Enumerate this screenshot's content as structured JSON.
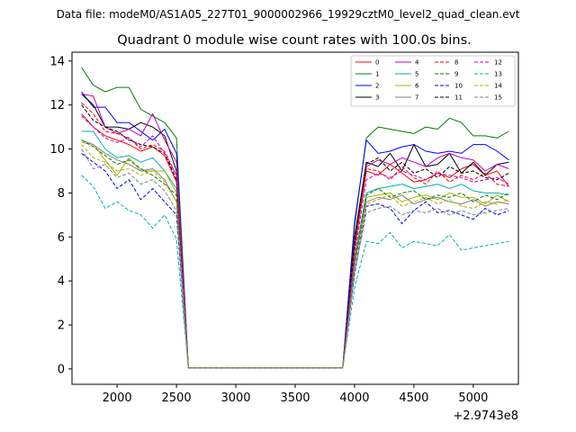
{
  "chart_data": {
    "type": "line",
    "suptitle": "Data file: modeM0/AS1A05_227T01_9000002966_19929cztM0_level2_quad_clean.evt",
    "title": "Quadrant 0 module wise count rates with 100.0s bins.",
    "xlabel": "",
    "ylabel": "",
    "x_offset_label": "+2.9743e8",
    "xlim": [
      1620,
      5380
    ],
    "ylim": [
      -0.7,
      14.4
    ],
    "xticks": [
      2000,
      2500,
      3000,
      3500,
      4000,
      4500,
      5000
    ],
    "yticks": [
      0,
      2,
      4,
      6,
      8,
      10,
      12,
      14
    ],
    "legend_position": "top-right",
    "legend_columns": 4,
    "x": [
      1700,
      1800,
      1900,
      2000,
      2100,
      2200,
      2300,
      2400,
      2500,
      2600,
      2700,
      2800,
      2900,
      3000,
      3100,
      3200,
      3300,
      3400,
      3500,
      3600,
      3700,
      3800,
      3900,
      4000,
      4100,
      4200,
      4300,
      4400,
      4500,
      4600,
      4700,
      4800,
      4900,
      5000,
      5100,
      5200,
      5300
    ],
    "series": [
      {
        "name": "0",
        "color": "#ff0000",
        "style": "solid",
        "values": [
          11.6,
          11.0,
          10.6,
          10.4,
          10.2,
          9.9,
          10.1,
          9.7,
          8.5,
          0.05,
          0.05,
          0.05,
          0.05,
          0.05,
          0.05,
          0.05,
          0.05,
          0.05,
          0.05,
          0.05,
          0.05,
          0.05,
          0.05,
          5.5,
          9.0,
          8.8,
          9.3,
          8.9,
          8.5,
          8.6,
          8.9,
          8.7,
          9.1,
          9.3,
          8.8,
          9.0,
          8.3
        ]
      },
      {
        "name": "1",
        "color": "#008000",
        "style": "solid",
        "values": [
          13.7,
          12.9,
          12.6,
          12.8,
          12.8,
          11.8,
          11.5,
          11.2,
          10.5,
          0.05,
          0.05,
          0.05,
          0.05,
          0.05,
          0.05,
          0.05,
          0.05,
          0.05,
          0.05,
          0.05,
          0.05,
          0.05,
          0.05,
          6.5,
          10.5,
          11.0,
          10.9,
          10.8,
          10.7,
          11.0,
          10.9,
          11.4,
          11.2,
          10.6,
          10.6,
          10.5,
          10.8
        ]
      },
      {
        "name": "2",
        "color": "#0000ff",
        "style": "solid",
        "values": [
          12.6,
          11.9,
          11.9,
          11.2,
          11.2,
          10.8,
          10.4,
          10.9,
          9.8,
          0.05,
          0.05,
          0.05,
          0.05,
          0.05,
          0.05,
          0.05,
          0.05,
          0.05,
          0.05,
          0.05,
          0.05,
          0.05,
          0.05,
          6.7,
          10.4,
          9.8,
          9.9,
          10.1,
          10.2,
          9.9,
          9.8,
          9.9,
          9.8,
          10.2,
          10.2,
          9.9,
          9.5
        ]
      },
      {
        "name": "3",
        "color": "#000000",
        "style": "solid",
        "values": [
          12.5,
          12.0,
          11.0,
          11.0,
          10.9,
          11.2,
          11.0,
          10.6,
          9.0,
          0.05,
          0.05,
          0.05,
          0.05,
          0.05,
          0.05,
          0.05,
          0.05,
          0.05,
          0.05,
          0.05,
          0.05,
          0.05,
          0.05,
          6.0,
          9.4,
          9.2,
          9.8,
          9.0,
          10.2,
          9.2,
          9.3,
          9.8,
          8.9,
          9.4,
          8.8,
          9.3,
          9.4
        ]
      },
      {
        "name": "4",
        "color": "#c000c0",
        "style": "solid",
        "values": [
          12.5,
          12.4,
          11.0,
          10.7,
          10.9,
          10.6,
          11.6,
          10.4,
          9.4,
          0.05,
          0.05,
          0.05,
          0.05,
          0.05,
          0.05,
          0.05,
          0.05,
          0.05,
          0.05,
          0.05,
          0.05,
          0.05,
          0.05,
          5.8,
          9.2,
          9.5,
          9.3,
          9.6,
          9.4,
          9.2,
          9.6,
          9.8,
          9.6,
          9.5,
          9.0,
          9.3,
          9.1
        ]
      },
      {
        "name": "5",
        "color": "#00b0b0",
        "style": "solid",
        "values": [
          10.8,
          10.8,
          10.0,
          9.6,
          9.7,
          9.4,
          9.6,
          9.0,
          8.2,
          0.05,
          0.05,
          0.05,
          0.05,
          0.05,
          0.05,
          0.05,
          0.05,
          0.05,
          0.05,
          0.05,
          0.05,
          0.05,
          0.05,
          5.0,
          8.0,
          8.2,
          8.3,
          8.4,
          8.2,
          8.3,
          8.4,
          8.2,
          8.4,
          8.1,
          8.0,
          8.0,
          7.9
        ]
      },
      {
        "name": "6",
        "color": "#b0b000",
        "style": "solid",
        "values": [
          10.3,
          10.2,
          9.5,
          8.8,
          9.6,
          9.0,
          9.0,
          9.0,
          8.0,
          0.05,
          0.05,
          0.05,
          0.05,
          0.05,
          0.05,
          0.05,
          0.05,
          0.05,
          0.05,
          0.05,
          0.05,
          0.05,
          0.05,
          4.9,
          7.8,
          7.9,
          8.0,
          7.6,
          7.8,
          7.9,
          7.7,
          8.0,
          7.8,
          7.8,
          7.5,
          7.9,
          7.6
        ]
      },
      {
        "name": "7",
        "color": "#808080",
        "style": "solid",
        "values": [
          10.4,
          10.2,
          9.8,
          9.5,
          9.3,
          9.0,
          9.1,
          8.6,
          7.6,
          0.05,
          0.05,
          0.05,
          0.05,
          0.05,
          0.05,
          0.05,
          0.05,
          0.05,
          0.05,
          0.05,
          0.05,
          0.05,
          0.05,
          4.8,
          7.6,
          7.8,
          7.7,
          7.9,
          7.5,
          7.7,
          7.8,
          7.6,
          7.5,
          7.7,
          7.4,
          7.6,
          7.5
        ]
      },
      {
        "name": "8",
        "color": "#ff0000",
        "style": "dashed",
        "values": [
          12.1,
          11.6,
          10.8,
          10.7,
          10.5,
          10.0,
          10.2,
          9.9,
          8.8,
          0.05,
          0.05,
          0.05,
          0.05,
          0.05,
          0.05,
          0.05,
          0.05,
          0.05,
          0.05,
          0.05,
          0.05,
          0.05,
          0.05,
          5.4,
          9.1,
          9.0,
          8.6,
          9.2,
          8.7,
          8.4,
          9.0,
          8.5,
          8.8,
          8.6,
          8.9,
          8.4,
          8.3
        ]
      },
      {
        "name": "9",
        "color": "#008000",
        "style": "dashed",
        "values": [
          10.4,
          10.1,
          9.7,
          9.3,
          9.5,
          9.1,
          8.8,
          8.4,
          7.9,
          0.05,
          0.05,
          0.05,
          0.05,
          0.05,
          0.05,
          0.05,
          0.05,
          0.05,
          0.05,
          0.05,
          0.05,
          0.05,
          0.05,
          4.8,
          7.9,
          8.2,
          7.8,
          8.0,
          8.1,
          7.7,
          7.9,
          7.8,
          8.0,
          7.6,
          7.9,
          7.7,
          8.0
        ]
      },
      {
        "name": "10",
        "color": "#0000ff",
        "style": "dashed",
        "values": [
          9.8,
          9.4,
          9.0,
          8.2,
          8.6,
          7.7,
          8.2,
          7.6,
          7.0,
          0.05,
          0.05,
          0.05,
          0.05,
          0.05,
          0.05,
          0.05,
          0.05,
          0.05,
          0.05,
          0.05,
          0.05,
          0.05,
          0.05,
          4.3,
          7.4,
          7.5,
          7.3,
          6.6,
          7.2,
          7.6,
          7.1,
          7.2,
          7.0,
          6.8,
          7.3,
          7.0,
          7.2
        ]
      },
      {
        "name": "11",
        "color": "#000000",
        "style": "dashed",
        "values": [
          12.0,
          11.3,
          11.0,
          10.8,
          10.4,
          10.2,
          10.1,
          9.8,
          8.6,
          0.05,
          0.05,
          0.05,
          0.05,
          0.05,
          0.05,
          0.05,
          0.05,
          0.05,
          0.05,
          0.05,
          0.05,
          0.05,
          0.05,
          5.8,
          9.3,
          9.6,
          9.0,
          9.4,
          8.9,
          9.1,
          8.7,
          9.2,
          8.9,
          9.0,
          8.7,
          8.6,
          8.9
        ]
      },
      {
        "name": "12",
        "color": "#c000c0",
        "style": "dashed",
        "values": [
          11.5,
          11.0,
          10.5,
          10.3,
          10.5,
          10.1,
          10.6,
          9.8,
          8.8,
          0.05,
          0.05,
          0.05,
          0.05,
          0.05,
          0.05,
          0.05,
          0.05,
          0.05,
          0.05,
          0.05,
          0.05,
          0.05,
          0.05,
          5.2,
          8.6,
          8.9,
          8.7,
          9.0,
          8.8,
          8.6,
          8.9,
          8.8,
          8.7,
          8.5,
          8.6,
          8.7,
          8.4
        ]
      },
      {
        "name": "13",
        "color": "#00b0b0",
        "style": "dashed",
        "values": [
          8.8,
          8.3,
          7.3,
          7.6,
          7.2,
          7.0,
          6.4,
          7.0,
          5.9,
          0.05,
          0.05,
          0.05,
          0.05,
          0.05,
          0.05,
          0.05,
          0.05,
          0.05,
          0.05,
          0.05,
          0.05,
          0.05,
          0.05,
          3.7,
          5.8,
          5.7,
          6.2,
          5.5,
          5.8,
          5.7,
          5.6,
          6.1,
          5.4,
          5.5,
          5.6,
          5.7,
          5.8
        ]
      },
      {
        "name": "14",
        "color": "#b0b000",
        "style": "dashed",
        "values": [
          10.2,
          9.6,
          9.4,
          9.0,
          9.1,
          8.8,
          9.0,
          8.5,
          7.6,
          0.05,
          0.05,
          0.05,
          0.05,
          0.05,
          0.05,
          0.05,
          0.05,
          0.05,
          0.05,
          0.05,
          0.05,
          0.05,
          0.05,
          4.6,
          7.5,
          7.7,
          7.9,
          7.4,
          7.6,
          7.8,
          7.5,
          7.7,
          7.4,
          7.3,
          7.6,
          7.5,
          7.7
        ]
      },
      {
        "name": "15",
        "color": "#808080",
        "style": "dashed",
        "values": [
          10.0,
          9.1,
          9.3,
          8.7,
          8.9,
          8.4,
          8.6,
          8.1,
          7.2,
          0.05,
          0.05,
          0.05,
          0.05,
          0.05,
          0.05,
          0.05,
          0.05,
          0.05,
          0.05,
          0.05,
          0.05,
          0.05,
          0.05,
          4.4,
          7.1,
          7.3,
          7.4,
          7.0,
          7.2,
          7.1,
          7.3,
          7.0,
          7.2,
          7.0,
          7.1,
          7.2,
          7.3
        ]
      }
    ]
  }
}
